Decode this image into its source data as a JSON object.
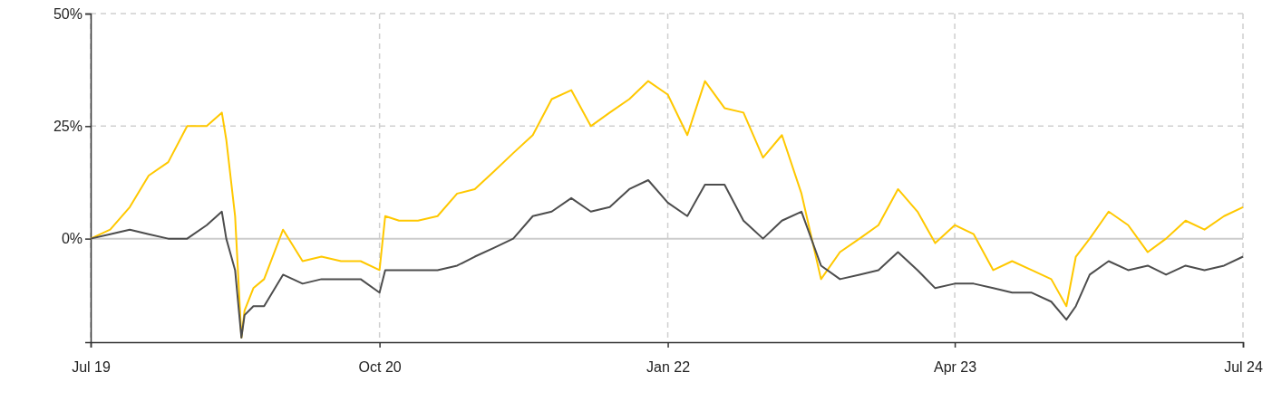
{
  "chart_data": {
    "type": "line",
    "x": [
      "2019-07-01",
      "2019-08-01",
      "2019-09-01",
      "2019-10-01",
      "2019-11-01",
      "2019-12-01",
      "2020-01-01",
      "2020-01-25",
      "2020-02-01",
      "2020-02-15",
      "2020-02-25",
      "2020-03-01",
      "2020-03-15",
      "2020-04-01",
      "2020-05-01",
      "2020-06-01",
      "2020-07-01",
      "2020-08-01",
      "2020-09-01",
      "2020-10-01",
      "2020-10-10",
      "2020-11-01",
      "2020-12-01",
      "2021-01-01",
      "2021-02-01",
      "2021-03-01",
      "2021-04-01",
      "2021-05-01",
      "2021-06-01",
      "2021-07-01",
      "2021-08-01",
      "2021-09-01",
      "2021-10-01",
      "2021-11-01",
      "2021-12-01",
      "2022-01-01",
      "2022-02-01",
      "2022-03-01",
      "2022-04-01",
      "2022-05-01",
      "2022-06-01",
      "2022-07-01",
      "2022-08-01",
      "2022-09-01",
      "2022-10-01",
      "2022-11-01",
      "2022-12-01",
      "2023-01-01",
      "2023-02-01",
      "2023-03-01",
      "2023-04-01",
      "2023-05-01",
      "2023-06-01",
      "2023-07-01",
      "2023-08-01",
      "2023-09-01",
      "2023-09-25",
      "2023-10-10",
      "2023-11-01",
      "2023-12-01",
      "2024-01-01",
      "2024-02-01",
      "2024-03-01",
      "2024-04-01",
      "2024-05-01",
      "2024-06-01",
      "2024-07-01"
    ],
    "series": [
      {
        "color": "#ffc800",
        "values": [
          0,
          2,
          7,
          14,
          17,
          25,
          25,
          28,
          22,
          5,
          -22,
          -16,
          -11,
          -9,
          2,
          -5,
          -4,
          -5,
          -5,
          -7,
          5,
          4,
          4,
          5,
          10,
          11,
          15,
          19,
          23,
          31,
          33,
          25,
          28,
          31,
          35,
          32,
          23,
          35,
          29,
          28,
          18,
          23,
          10,
          -9,
          -3,
          0,
          3,
          11,
          6,
          -1,
          3,
          1,
          -7,
          -5,
          -7,
          -9,
          -15,
          -4,
          0,
          6,
          3,
          -3,
          0,
          4,
          2,
          5,
          7
        ]
      },
      {
        "color": "#4d4d4d",
        "values": [
          0,
          1,
          2,
          1,
          0,
          0,
          3,
          6,
          0,
          -7,
          -22,
          -17,
          -15,
          -15,
          -8,
          -10,
          -9,
          -9,
          -9,
          -12,
          -7,
          -7,
          -7,
          -7,
          -6,
          -4,
          -2,
          0,
          5,
          6,
          9,
          6,
          7,
          11,
          13,
          8,
          5,
          12,
          12,
          4,
          0,
          4,
          6,
          -6,
          -9,
          -8,
          -7,
          -3,
          -7,
          -11,
          -10,
          -10,
          -11,
          -12,
          -12,
          -14,
          -18,
          -15,
          -8,
          -5,
          -7,
          -6,
          -8,
          -6,
          -7,
          -6,
          -4
        ]
      }
    ],
    "xlim": [
      "2019-07-01",
      "2024-07-01"
    ],
    "xticks": [
      {
        "value": "2019-07-01",
        "label": "Jul 19"
      },
      {
        "value": "2020-10-01",
        "label": "Oct 20"
      },
      {
        "value": "2022-01-01",
        "label": "Jan 22"
      },
      {
        "value": "2023-04-01",
        "label": "Apr 23"
      },
      {
        "value": "2024-07-01",
        "label": "Jul 24"
      }
    ],
    "ylim": [
      -23,
      50
    ],
    "yticks": [
      {
        "value": 0,
        "label": "0%"
      },
      {
        "value": 25,
        "label": "25%"
      },
      {
        "value": 50,
        "label": "50%"
      }
    ],
    "grid": true,
    "marker": "none",
    "line_style": "solid"
  }
}
